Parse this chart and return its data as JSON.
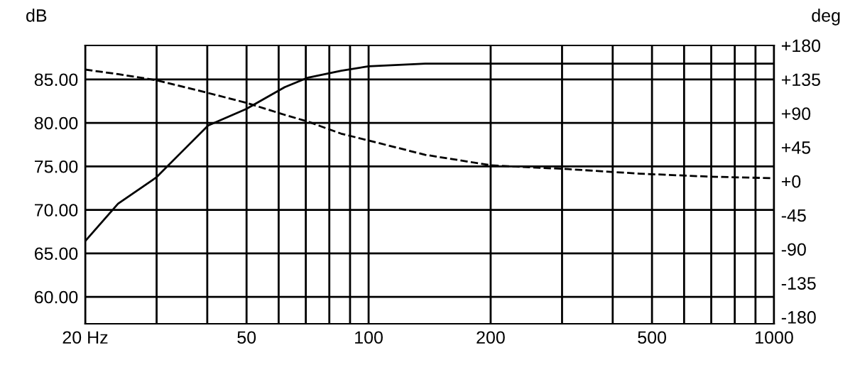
{
  "chart_data": {
    "type": "line",
    "ylabel": "dB",
    "y2label": "deg",
    "log": "x",
    "grid": true,
    "legend": false,
    "marker": "none",
    "xlim": [
      20,
      1000
    ],
    "xticks": [
      {
        "value": 20,
        "label": "20 Hz"
      },
      {
        "value": 30,
        "label": null
      },
      {
        "value": 40,
        "label": null
      },
      50,
      {
        "value": 60,
        "label": null
      },
      {
        "value": 70,
        "label": null
      },
      {
        "value": 80,
        "label": null
      },
      {
        "value": 90,
        "label": null
      },
      100,
      200,
      {
        "value": 300,
        "label": null
      },
      {
        "value": 400,
        "label": null
      },
      500,
      {
        "value": 600,
        "label": null
      },
      {
        "value": 700,
        "label": null
      },
      {
        "value": 800,
        "label": null
      },
      {
        "value": 900,
        "label": null
      },
      1000
    ],
    "ylim": [
      56.9,
      88.9
    ],
    "yticks": [
      {
        "value": 60,
        "label": "60.00"
      },
      {
        "value": 65,
        "label": "65.00"
      },
      {
        "value": 70,
        "label": "70.00"
      },
      {
        "value": 75,
        "label": "75.00"
      },
      {
        "value": 80,
        "label": "80.00"
      },
      {
        "value": 85,
        "label": "85.00"
      }
    ],
    "y2lim": [
      -189,
      180
    ],
    "y2ticks": [
      {
        "value": 180,
        "label": "+180"
      },
      {
        "value": 135,
        "label": "+135"
      },
      {
        "value": 90,
        "label": "+90"
      },
      {
        "value": 45,
        "label": "+45"
      },
      {
        "value": 0,
        "label": "+0"
      },
      -45,
      -90,
      -135,
      -180
    ],
    "series": [
      {
        "color": "#000000",
        "line_style": "solid",
        "x": [
          20,
          24.1,
          29.9,
          40.2,
          49.9,
          62.1,
          70.9,
          85.6,
          100,
          138,
          1000
        ],
        "values": [
          66.4,
          70.7,
          73.7,
          79.7,
          81.6,
          84.1,
          85.2,
          86.0,
          86.5,
          86.8,
          86.8
        ]
      },
      {
        "color": "#000000",
        "line_style": "dashed",
        "axis": "y2",
        "x": [
          20,
          24.1,
          29.9,
          40.2,
          49.9,
          62.1,
          70.9,
          85.6,
          100,
          138,
          201,
          311,
          466,
          698,
          1000
        ],
        "values": [
          148,
          142,
          134,
          117,
          104,
          88,
          79,
          63,
          54,
          35,
          21,
          16,
          10,
          6,
          4
        ]
      }
    ]
  }
}
